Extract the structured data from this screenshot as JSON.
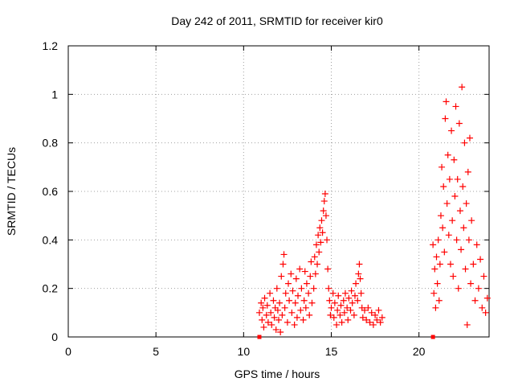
{
  "chart_data": {
    "type": "scatter",
    "title": "Day 242 of 2011, SRMTID for receiver kir0",
    "xlabel": "GPS time / hours",
    "ylabel": "SRMTID / TECUs",
    "xlim": [
      0,
      24
    ],
    "ylim": [
      0,
      1.2
    ],
    "xticks": [
      0,
      5,
      10,
      15,
      20
    ],
    "xtick_labels": [
      "0",
      "5",
      "10",
      "15",
      "20"
    ],
    "yticks": [
      0,
      0.2,
      0.4,
      0.6,
      0.8,
      1.0,
      1.2
    ],
    "ytick_labels": [
      "0",
      "0.2",
      "0.4",
      "0.6",
      "0.8",
      "1",
      "1.2"
    ],
    "grid": true,
    "legend": "none",
    "marker": "plus",
    "color": "#ff0000",
    "series": [
      {
        "values": [
          [
            10.9,
            0.1
          ],
          [
            11.0,
            0.14
          ],
          [
            11.05,
            0.07
          ],
          [
            11.1,
            0.12
          ],
          [
            11.15,
            0.04
          ],
          [
            11.2,
            0.16
          ],
          [
            11.3,
            0.09
          ],
          [
            11.35,
            0.13
          ],
          [
            11.4,
            0.06
          ],
          [
            11.5,
            0.18
          ],
          [
            11.55,
            0.1
          ],
          [
            11.6,
            0.05
          ],
          [
            11.7,
            0.15
          ],
          [
            11.75,
            0.08
          ],
          [
            11.8,
            0.12
          ],
          [
            11.85,
            0.03
          ],
          [
            11.9,
            0.2
          ],
          [
            11.95,
            0.11
          ],
          [
            12.0,
            0.07
          ],
          [
            12.05,
            0.14
          ],
          [
            12.1,
            0.02
          ],
          [
            12.15,
            0.25
          ],
          [
            12.2,
            0.09
          ],
          [
            12.25,
            0.3
          ],
          [
            12.3,
            0.34
          ],
          [
            12.35,
            0.12
          ],
          [
            12.4,
            0.18
          ],
          [
            12.5,
            0.06
          ],
          [
            12.55,
            0.22
          ],
          [
            12.6,
            0.15
          ],
          [
            12.7,
            0.26
          ],
          [
            12.75,
            0.1
          ],
          [
            12.8,
            0.19
          ],
          [
            12.9,
            0.05
          ],
          [
            12.95,
            0.14
          ],
          [
            13.0,
            0.24
          ],
          [
            13.05,
            0.08
          ],
          [
            13.1,
            0.17
          ],
          [
            13.2,
            0.28
          ],
          [
            13.25,
            0.11
          ],
          [
            13.3,
            0.2
          ],
          [
            13.4,
            0.07
          ],
          [
            13.45,
            0.15
          ],
          [
            13.5,
            0.27
          ],
          [
            13.55,
            0.12
          ],
          [
            13.6,
            0.22
          ],
          [
            13.7,
            0.18
          ],
          [
            13.75,
            0.09
          ],
          [
            13.8,
            0.25
          ],
          [
            13.85,
            0.31
          ],
          [
            13.9,
            0.14
          ],
          [
            14.0,
            0.2
          ],
          [
            14.05,
            0.33
          ],
          [
            14.1,
            0.26
          ],
          [
            14.15,
            0.38
          ],
          [
            14.2,
            0.3
          ],
          [
            14.25,
            0.42
          ],
          [
            14.3,
            0.35
          ],
          [
            14.35,
            0.45
          ],
          [
            14.4,
            0.39
          ],
          [
            14.45,
            0.48
          ],
          [
            14.5,
            0.43
          ],
          [
            14.55,
            0.52
          ],
          [
            14.6,
            0.56
          ],
          [
            14.65,
            0.59
          ],
          [
            14.7,
            0.5
          ],
          [
            14.75,
            0.4
          ],
          [
            14.8,
            0.28
          ],
          [
            14.85,
            0.2
          ],
          [
            14.9,
            0.15
          ],
          [
            14.95,
            0.09
          ],
          [
            15.0,
            0.12
          ],
          [
            15.1,
            0.18
          ],
          [
            15.15,
            0.08
          ],
          [
            15.2,
            0.14
          ],
          [
            15.3,
            0.05
          ],
          [
            15.35,
            0.11
          ],
          [
            15.4,
            0.17
          ],
          [
            15.5,
            0.09
          ],
          [
            15.55,
            0.13
          ],
          [
            15.6,
            0.06
          ],
          [
            15.7,
            0.15
          ],
          [
            15.75,
            0.1
          ],
          [
            15.8,
            0.18
          ],
          [
            15.9,
            0.12
          ],
          [
            15.95,
            0.07
          ],
          [
            16.0,
            0.16
          ],
          [
            16.1,
            0.11
          ],
          [
            16.15,
            0.19
          ],
          [
            16.2,
            0.14
          ],
          [
            16.3,
            0.09
          ],
          [
            16.35,
            0.17
          ],
          [
            16.4,
            0.22
          ],
          [
            16.5,
            0.15
          ],
          [
            16.55,
            0.26
          ],
          [
            16.6,
            0.3
          ],
          [
            16.65,
            0.24
          ],
          [
            16.7,
            0.18
          ],
          [
            16.75,
            0.12
          ],
          [
            16.8,
            0.08
          ],
          [
            16.9,
            0.11
          ],
          [
            17.0,
            0.07
          ],
          [
            17.1,
            0.12
          ],
          [
            17.2,
            0.06
          ],
          [
            17.3,
            0.1
          ],
          [
            17.4,
            0.05
          ],
          [
            17.5,
            0.09
          ],
          [
            17.6,
            0.07
          ],
          [
            17.7,
            0.11
          ],
          [
            17.8,
            0.06
          ],
          [
            17.9,
            0.08
          ],
          [
            20.8,
            0.38
          ],
          [
            20.85,
            0.18
          ],
          [
            20.9,
            0.28
          ],
          [
            20.95,
            0.12
          ],
          [
            21.0,
            0.33
          ],
          [
            21.05,
            0.22
          ],
          [
            21.1,
            0.4
          ],
          [
            21.15,
            0.15
          ],
          [
            21.2,
            0.3
          ],
          [
            21.25,
            0.5
          ],
          [
            21.3,
            0.7
          ],
          [
            21.35,
            0.45
          ],
          [
            21.4,
            0.62
          ],
          [
            21.45,
            0.35
          ],
          [
            21.5,
            0.9
          ],
          [
            21.55,
            0.97
          ],
          [
            21.6,
            0.55
          ],
          [
            21.65,
            0.75
          ],
          [
            21.7,
            0.42
          ],
          [
            21.75,
            0.65
          ],
          [
            21.8,
            0.3
          ],
          [
            21.85,
            0.85
          ],
          [
            21.9,
            0.48
          ],
          [
            21.95,
            0.25
          ],
          [
            22.0,
            0.73
          ],
          [
            22.05,
            0.58
          ],
          [
            22.1,
            0.95
          ],
          [
            22.15,
            0.4
          ],
          [
            22.2,
            0.65
          ],
          [
            22.25,
            0.2
          ],
          [
            22.3,
            0.88
          ],
          [
            22.35,
            0.52
          ],
          [
            22.4,
            0.36
          ],
          [
            22.45,
            1.03
          ],
          [
            22.5,
            0.62
          ],
          [
            22.55,
            0.45
          ],
          [
            22.6,
            0.8
          ],
          [
            22.65,
            0.28
          ],
          [
            22.7,
            0.55
          ],
          [
            22.75,
            0.05
          ],
          [
            22.8,
            0.68
          ],
          [
            22.85,
            0.4
          ],
          [
            22.9,
            0.82
          ],
          [
            22.95,
            0.22
          ],
          [
            23.0,
            0.48
          ],
          [
            23.1,
            0.3
          ],
          [
            23.2,
            0.15
          ],
          [
            23.3,
            0.38
          ],
          [
            23.4,
            0.2
          ],
          [
            23.5,
            0.32
          ],
          [
            23.6,
            0.12
          ],
          [
            23.7,
            0.25
          ],
          [
            23.8,
            0.1
          ],
          [
            23.9,
            0.16
          ]
        ]
      }
    ],
    "zero_markers": [
      10.9,
      20.8
    ]
  }
}
